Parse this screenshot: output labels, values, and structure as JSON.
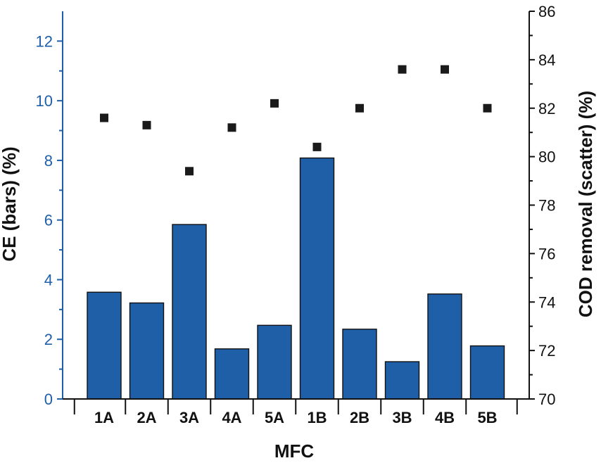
{
  "chart_data": {
    "type": "bar",
    "xlabel": "MFC",
    "categories": [
      "1A",
      "2A",
      "3A",
      "4A",
      "5A",
      "1B",
      "2B",
      "3B",
      "4B",
      "5B"
    ],
    "left_axis": {
      "label": "CE (bars) (%)",
      "ylim": [
        0,
        13
      ],
      "ticks": [
        0,
        2,
        4,
        6,
        8,
        10,
        12
      ],
      "color": "#1f5fa8"
    },
    "right_axis": {
      "label": "COD removal (scatter) (%)",
      "ylim": [
        70,
        86
      ],
      "ticks": [
        70,
        72,
        74,
        76,
        78,
        80,
        82,
        84,
        86
      ],
      "color": "#111111"
    },
    "series": [
      {
        "kind": "bar",
        "axis": "left",
        "color": "#1f5fa8",
        "values": [
          3.58,
          3.22,
          5.85,
          1.68,
          2.47,
          8.08,
          2.34,
          1.25,
          3.52,
          1.78
        ]
      },
      {
        "kind": "scatter",
        "axis": "right",
        "color": "#1a1a1a",
        "values": [
          81.6,
          81.3,
          79.4,
          81.2,
          82.2,
          80.4,
          82.0,
          83.6,
          83.6,
          82.0
        ]
      }
    ],
    "grid": false,
    "legend": "none"
  }
}
